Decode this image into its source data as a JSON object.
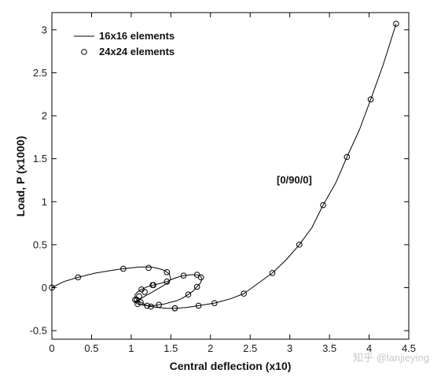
{
  "chart_data": {
    "type": "line",
    "title": "",
    "xlabel": "Central deflection (x10)",
    "ylabel": "Load, P (x1000)",
    "xlim": [
      0,
      4.5
    ],
    "ylim": [
      -0.6,
      3.2
    ],
    "x_ticks": [
      0,
      0.5,
      1,
      1.5,
      2,
      2.5,
      3,
      3.5,
      4,
      4.5
    ],
    "x_tick_labels": [
      "0",
      "0.5",
      "1",
      "1.5",
      "2",
      "2.5",
      "3",
      "3.5",
      "4",
      "4.5"
    ],
    "y_ticks": [
      -0.5,
      0,
      0.5,
      1,
      1.5,
      2,
      2.5,
      3
    ],
    "y_tick_labels": [
      "-0.5",
      "0",
      "0.5",
      "1",
      "1.5",
      "2",
      "2.5",
      "3"
    ],
    "grid": false,
    "legend_position": "top-left",
    "annotation": "[0/90/0]",
    "series": [
      {
        "name": "16x16 elements",
        "style": "line",
        "color": "#000000",
        "x": [
          0,
          0.15,
          0.33,
          0.55,
          0.75,
          0.9,
          1.0,
          1.1,
          1.2,
          1.28,
          1.35,
          1.42,
          1.48,
          1.5,
          1.47,
          1.38,
          1.27,
          1.17,
          1.1,
          1.05,
          1.05,
          1.08,
          1.13,
          1.2,
          1.28,
          1.35,
          1.42,
          1.5,
          1.58,
          1.65,
          1.72,
          1.78,
          1.83,
          1.87,
          1.89,
          1.88,
          1.83,
          1.75,
          1.66,
          1.58,
          1.52,
          1.45,
          1.37,
          1.28,
          1.2,
          1.13,
          1.08,
          1.05,
          1.05,
          1.07,
          1.12,
          1.18,
          1.25,
          1.33,
          1.45,
          1.55,
          1.7,
          1.85,
          2.05,
          2.25,
          2.42,
          2.6,
          2.78,
          2.95,
          3.12,
          3.28,
          3.42,
          3.58,
          3.72,
          3.88,
          4.02,
          4.18,
          4.34
        ],
        "y": [
          0,
          0.07,
          0.12,
          0.17,
          0.2,
          0.22,
          0.23,
          0.24,
          0.24,
          0.235,
          0.22,
          0.2,
          0.16,
          0.1,
          0.06,
          0.01,
          -0.05,
          -0.1,
          -0.14,
          -0.16,
          -0.17,
          -0.19,
          -0.2,
          -0.21,
          -0.21,
          -0.2,
          -0.19,
          -0.17,
          -0.15,
          -0.12,
          -0.08,
          -0.04,
          0.01,
          0.05,
          0.09,
          0.13,
          0.15,
          0.15,
          0.14,
          0.12,
          0.1,
          0.07,
          0.05,
          0.03,
          0.01,
          -0.02,
          -0.05,
          -0.08,
          -0.11,
          -0.14,
          -0.17,
          -0.2,
          -0.22,
          -0.23,
          -0.24,
          -0.24,
          -0.23,
          -0.21,
          -0.18,
          -0.13,
          -0.07,
          0.05,
          0.17,
          0.32,
          0.5,
          0.7,
          0.96,
          1.22,
          1.52,
          1.84,
          2.19,
          2.6,
          3.07
        ]
      },
      {
        "name": "24x24 elements",
        "style": "markers",
        "marker": "open-circle",
        "color": "#000000",
        "x": [
          0,
          0.33,
          0.9,
          1.22,
          1.45,
          1.27,
          1.17,
          1.1,
          1.05,
          1.08,
          1.2,
          1.35,
          1.55,
          1.72,
          1.83,
          1.88,
          1.83,
          1.66,
          1.45,
          1.28,
          1.13,
          1.07,
          1.12,
          1.25,
          1.55,
          1.85,
          2.05,
          2.42,
          2.78,
          3.12,
          3.42,
          3.72,
          4.02,
          4.34
        ],
        "y": [
          0,
          0.12,
          0.22,
          0.23,
          0.18,
          0.03,
          -0.05,
          -0.1,
          -0.14,
          -0.19,
          -0.21,
          -0.2,
          -0.24,
          -0.08,
          0.01,
          0.12,
          0.15,
          0.14,
          0.07,
          0.03,
          -0.02,
          -0.14,
          -0.17,
          -0.22,
          -0.24,
          -0.21,
          -0.18,
          -0.07,
          0.17,
          0.5,
          0.96,
          1.52,
          2.19,
          3.07
        ]
      }
    ]
  },
  "watermark": "知乎 @lanjieying"
}
